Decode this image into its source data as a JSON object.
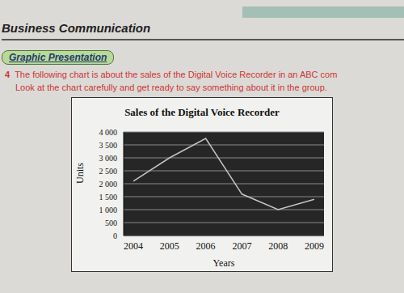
{
  "page": {
    "header": "Business Communication",
    "section": "Graphic Presentation",
    "question": {
      "number": "4",
      "lines": [
        "The following chart is about the sales of the Digital Voice Recorder in an ABC com",
        "Look at the chart carefully and get ready to say something about it in the group."
      ]
    }
  },
  "chart_data": {
    "type": "line",
    "title": "Sales of the Digital Voice Recorder",
    "x_label": "Years",
    "y_label": "Units",
    "categories": [
      "2004",
      "2005",
      "2006",
      "2007",
      "2008",
      "2009"
    ],
    "values": [
      2100,
      3000,
      3750,
      1600,
      1000,
      1400
    ],
    "color": "#c4c4c4",
    "ylim": [
      0,
      4000
    ],
    "yticks": [
      0,
      500,
      {
        "value": 1000,
        "label": "1 000"
      },
      {
        "value": 1500,
        "label": "1 500"
      },
      {
        "value": 2000,
        "label": "2 000"
      },
      {
        "value": 2500,
        "label": "2 500"
      },
      {
        "value": 3000,
        "label": "3 000"
      },
      {
        "value": 3500,
        "label": "3 500"
      },
      {
        "value": 4000,
        "label": "4 000"
      }
    ],
    "grid": true
  }
}
